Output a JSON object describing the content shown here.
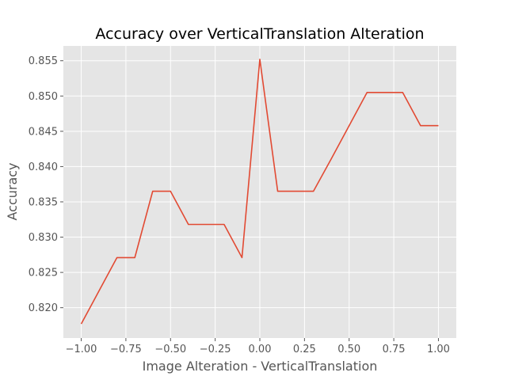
{
  "colors": {
    "plot_background": "#e5e5e5",
    "grid": "#ffffff",
    "line": "#e24a33",
    "tick": "#555555"
  },
  "chart_data": {
    "type": "line",
    "title": "Accuracy over VerticalTranslation Alteration",
    "xlabel": "Image Alteration - VerticalTranslation",
    "ylabel": "Accuracy",
    "xlim": [
      -1.1,
      1.1
    ],
    "ylim": [
      0.8157,
      0.8571
    ],
    "grid": true,
    "x_ticks": [
      -1.0,
      -0.75,
      -0.5,
      -0.25,
      0.0,
      0.25,
      0.5,
      0.75,
      1.0
    ],
    "x_tick_labels": [
      "−1.00",
      "−0.75",
      "−0.50",
      "−0.25",
      "0.00",
      "0.25",
      "0.50",
      "0.75",
      "1.00"
    ],
    "y_ticks": [
      0.82,
      0.825,
      0.83,
      0.835,
      0.84,
      0.845,
      0.85,
      0.855
    ],
    "y_tick_labels": [
      "0.820",
      "0.825",
      "0.830",
      "0.835",
      "0.840",
      "0.845",
      "0.850",
      "0.855"
    ],
    "series": [
      {
        "x": [
          -1.0,
          -0.9,
          -0.8,
          -0.7,
          -0.6,
          -0.5,
          -0.4,
          -0.3,
          -0.2,
          -0.1,
          0.0,
          0.1,
          0.2,
          0.3,
          0.4,
          0.5,
          0.6,
          0.7,
          0.8,
          0.9,
          1.0
        ],
        "values": [
          0.8177,
          0.8224,
          0.8271,
          0.8271,
          0.8365,
          0.8365,
          0.8318,
          0.8318,
          0.8318,
          0.8271,
          0.8552,
          0.8365,
          0.8365,
          0.8365,
          0.8411,
          0.8458,
          0.8505,
          0.8505,
          0.8505,
          0.8458,
          0.8458
        ]
      }
    ]
  }
}
